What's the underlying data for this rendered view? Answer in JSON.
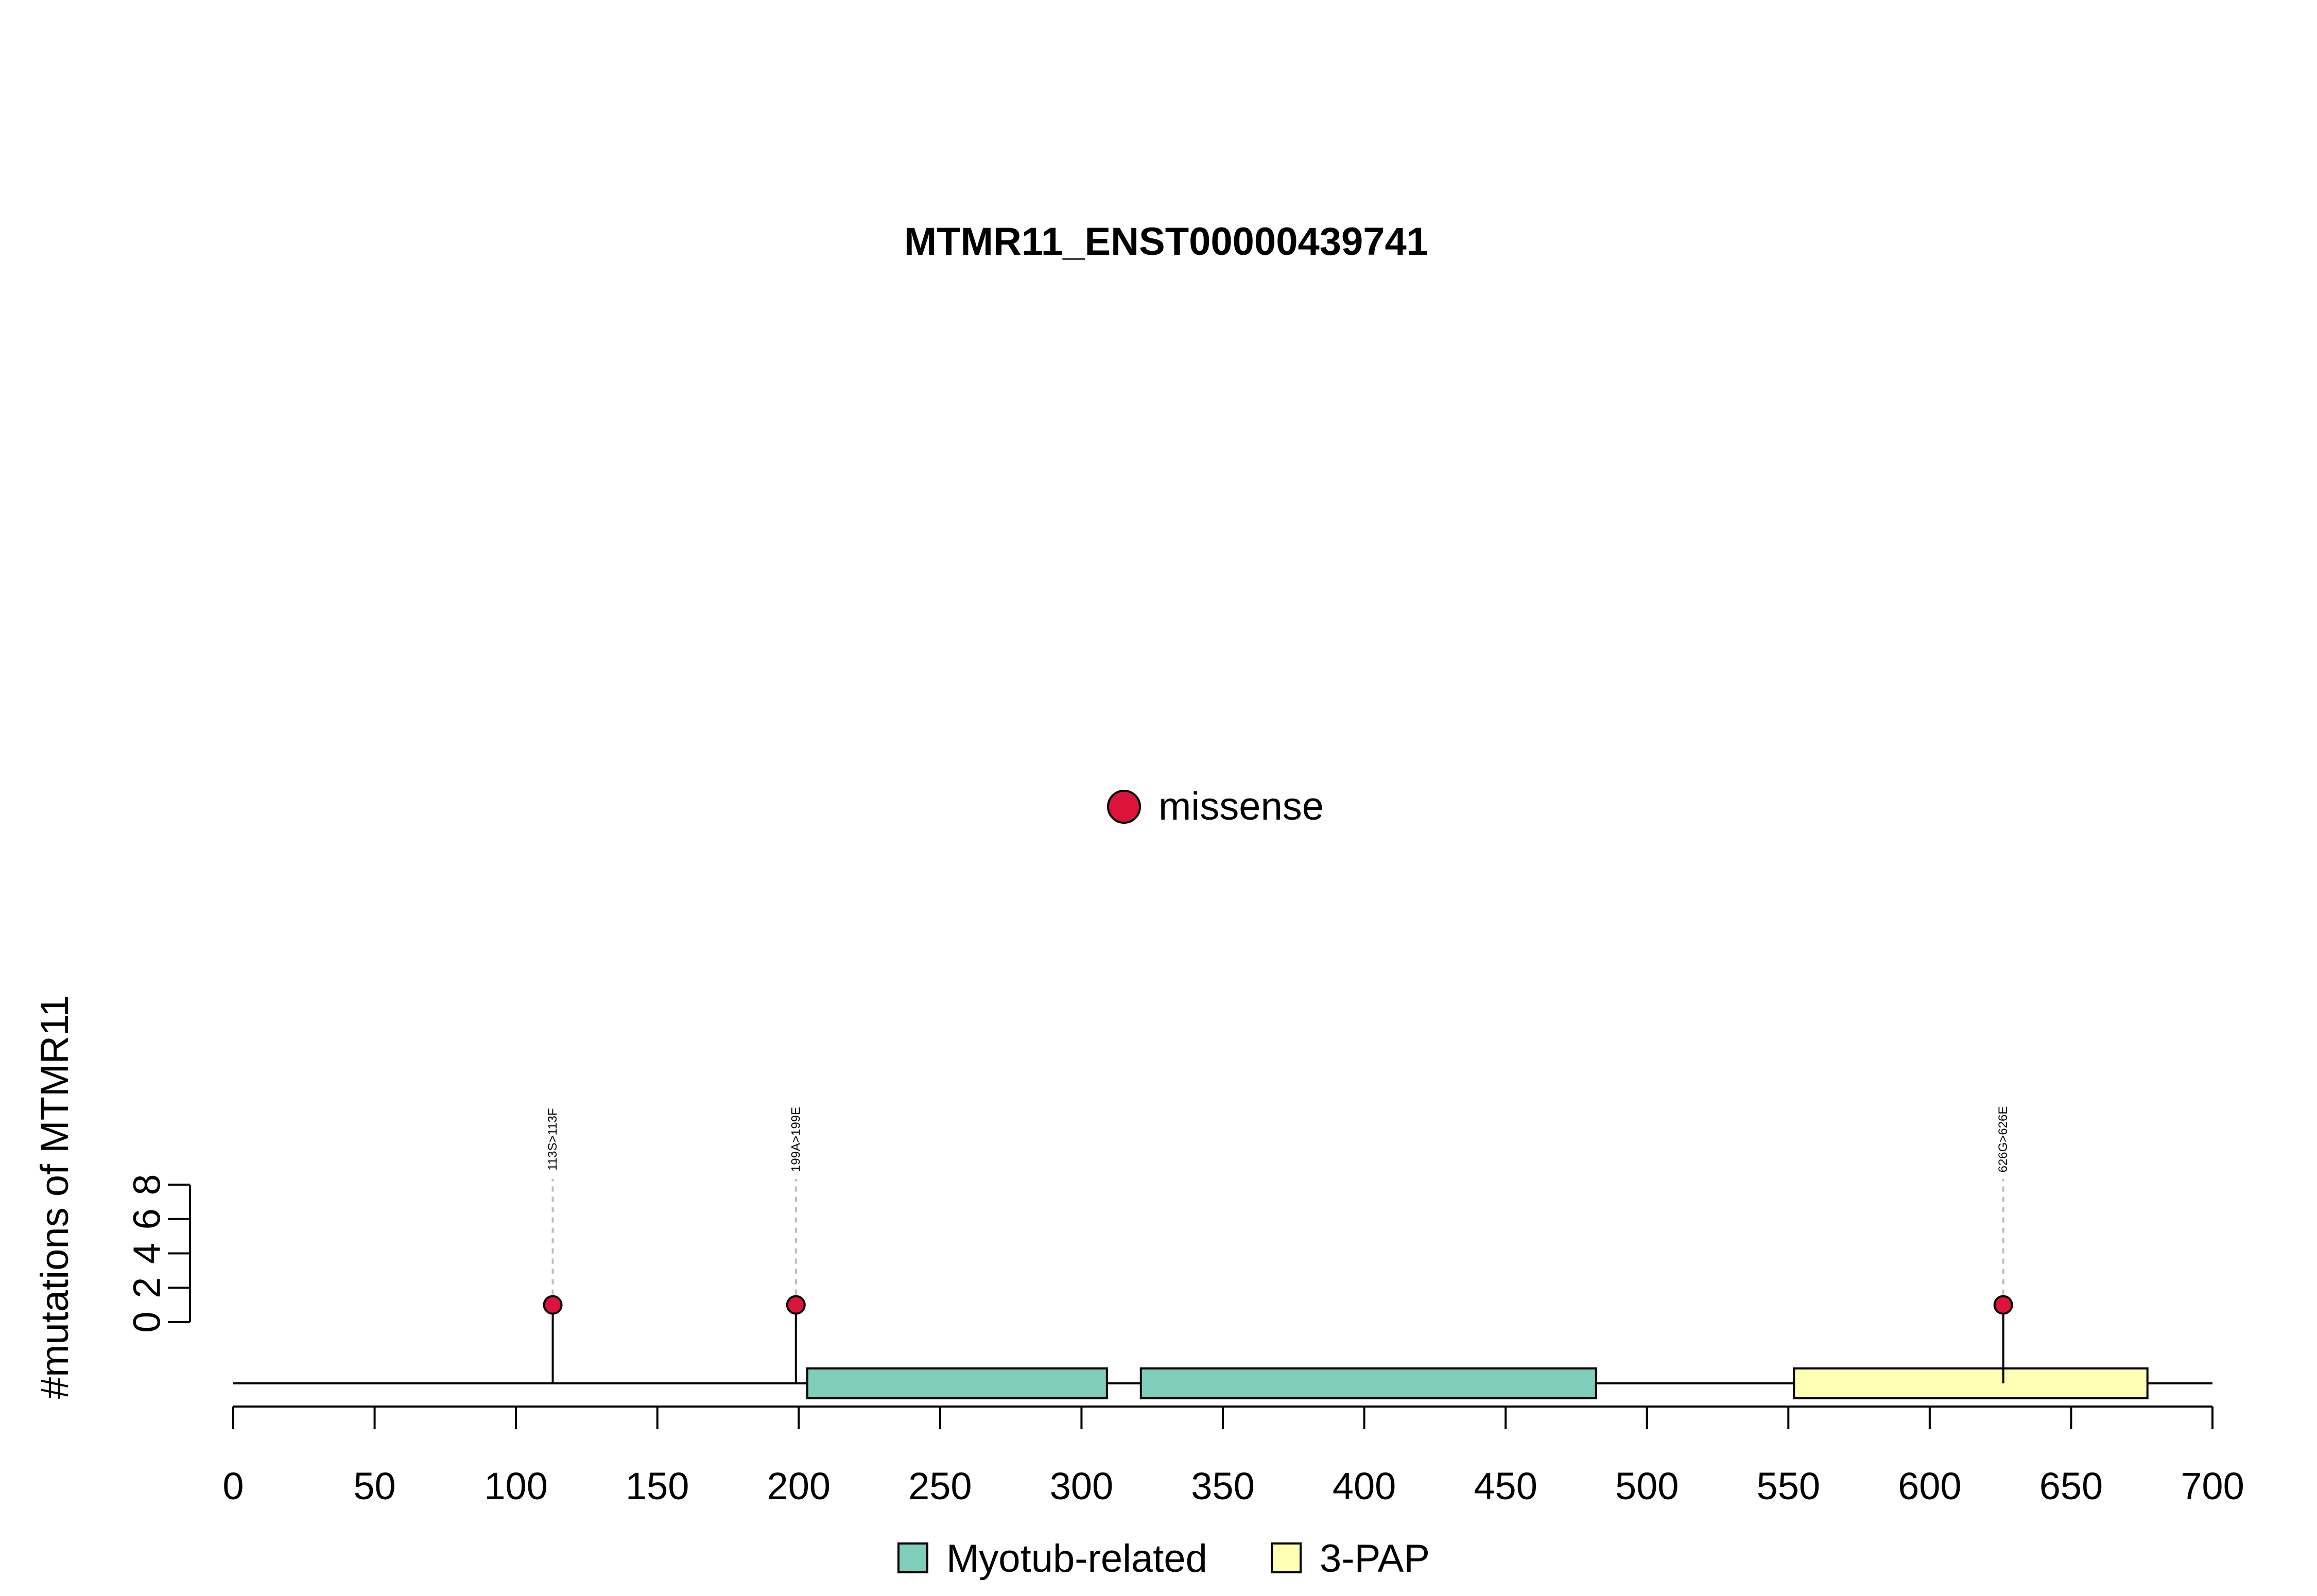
{
  "chart_data": {
    "type": "lollipop",
    "title": "MTMR11_ENST00000439741",
    "ylabel": "#mutations of MTMR11",
    "xlabel": "",
    "xlim": [
      0,
      700
    ],
    "x_ticks": [
      0,
      50,
      100,
      150,
      200,
      250,
      300,
      350,
      400,
      450,
      500,
      550,
      600,
      650,
      700
    ],
    "ylim": [
      0,
      8
    ],
    "y_ticks": [
      0,
      2,
      4,
      6,
      8
    ],
    "grid": false,
    "protein_length": 700,
    "mutation_legend": [
      {
        "label": "missense",
        "color": "#DC143C"
      }
    ],
    "mutations": [
      {
        "position": 113,
        "count": 1,
        "label": "113S>113F",
        "type": "missense"
      },
      {
        "position": 199,
        "count": 1,
        "label": "199A>199E",
        "type": "missense"
      },
      {
        "position": 626,
        "count": 1,
        "label": "626G>626E",
        "type": "missense"
      }
    ],
    "domains": [
      {
        "name": "Myotub-related",
        "start": 203,
        "end": 309,
        "color": "#7FCDBB"
      },
      {
        "name": "Myotub-related",
        "start": 321,
        "end": 482,
        "color": "#7FCDBB"
      },
      {
        "name": "3-PAP",
        "start": 552,
        "end": 677,
        "color": "#FFFFB3"
      }
    ],
    "domain_legend": [
      {
        "label": "Myotub-related",
        "color": "#7FCDBB"
      },
      {
        "label": "3-PAP",
        "color": "#FFFFB3"
      }
    ]
  }
}
